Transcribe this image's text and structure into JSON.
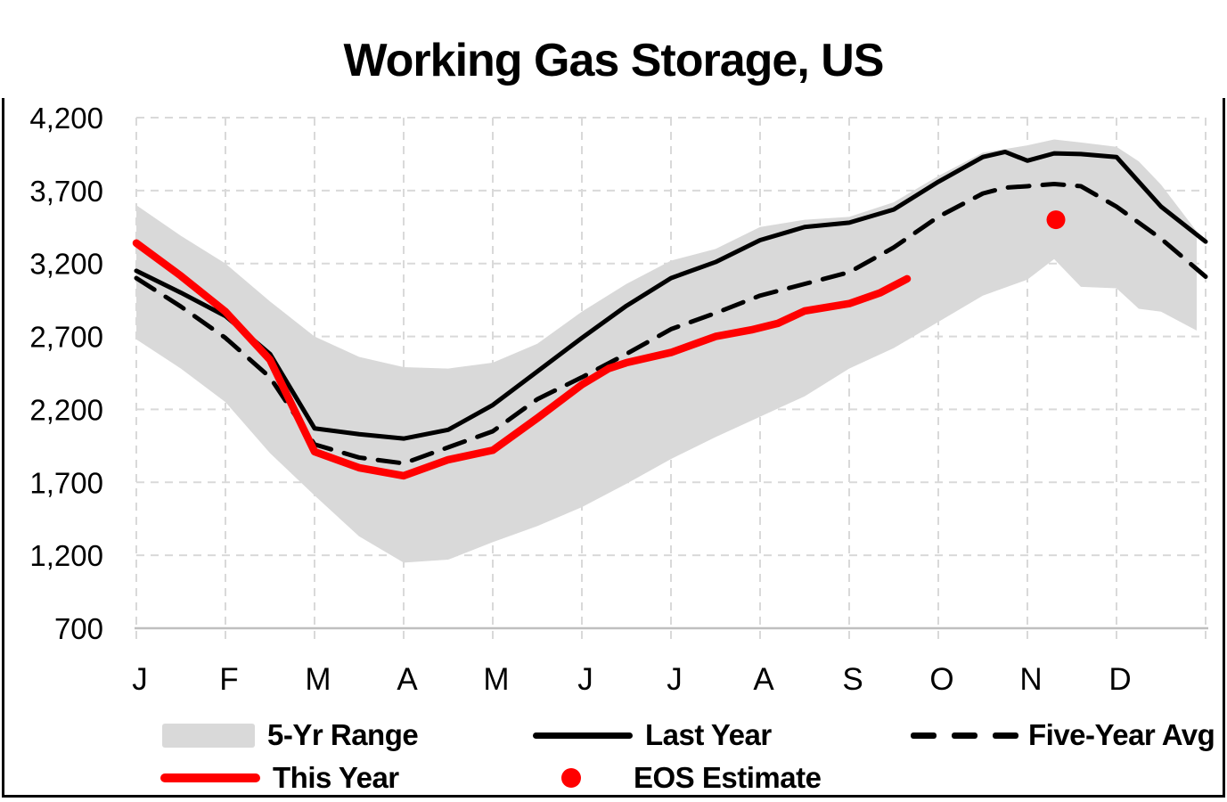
{
  "title": "Working Gas Storage, US",
  "colors": {
    "this_year": "#FF0000",
    "last_year": "#000000",
    "five_year_avg": "#000000",
    "range_band": "#D9D9D9",
    "gridline": "#D9D9D9",
    "axis_line": "#BFBFBF",
    "text": "#000000"
  },
  "legend": {
    "items": [
      {
        "label": "5-Yr Range",
        "swatch": "gray-band"
      },
      {
        "label": "Last Year",
        "swatch": "solid-black-line"
      },
      {
        "label": "Five-Year Avg",
        "swatch": "dashed-black-line"
      },
      {
        "label": "This Year",
        "swatch": "solid-red-line"
      },
      {
        "label": "EOS Estimate",
        "swatch": "red-dot"
      }
    ]
  },
  "chart_data": {
    "type": "line",
    "title": "Working Gas Storage, US",
    "xlabel": "",
    "ylabel": "",
    "x_unit": "month (0 = Jan 1, 12 = Dec 31)",
    "x_tick_labels": [
      "J",
      "F",
      "M",
      "A",
      "M",
      "J",
      "J",
      "A",
      "S",
      "O",
      "N",
      "D"
    ],
    "y_ticks": [
      700,
      1200,
      1700,
      2200,
      2700,
      3200,
      3700,
      4200
    ],
    "y_tick_labels": [
      "700",
      "1,200",
      "1,700",
      "2,200",
      "2,700",
      "3,200",
      "3,700",
      "4,200"
    ],
    "ylim": [
      700,
      4200
    ],
    "xlim": [
      0,
      12
    ],
    "grid": "dashed-both-axes",
    "legend_position": "bottom",
    "band": {
      "name": "5-Yr Range",
      "color": "#D9D9D9",
      "x": [
        0,
        0.5,
        1,
        1.5,
        2,
        2.5,
        3,
        3.5,
        4,
        4.5,
        5,
        5.5,
        6,
        6.5,
        7,
        7.5,
        8,
        8.5,
        9,
        9.5,
        10,
        10.3,
        10.6,
        11,
        11.25,
        11.5,
        11.9
      ],
      "upper": [
        3600,
        3390,
        3200,
        2940,
        2700,
        2560,
        2490,
        2480,
        2520,
        2650,
        2870,
        3060,
        3220,
        3300,
        3450,
        3500,
        3520,
        3620,
        3800,
        3960,
        4010,
        4050,
        4030,
        4000,
        3900,
        3740,
        3420
      ],
      "lower": [
        2680,
        2480,
        2250,
        1900,
        1610,
        1330,
        1150,
        1170,
        1290,
        1400,
        1530,
        1690,
        1860,
        2010,
        2150,
        2290,
        2480,
        2620,
        2800,
        2980,
        3090,
        3230,
        3040,
        3030,
        2890,
        2870,
        2740
      ]
    },
    "series": [
      {
        "name": "Last Year",
        "color": "#000000",
        "style": "solid",
        "width": 5,
        "x": [
          0,
          0.5,
          1,
          1.5,
          2,
          2.5,
          3,
          3.5,
          4,
          4.5,
          5,
          5.5,
          6,
          6.5,
          7,
          7.5,
          8,
          8.5,
          9,
          9.5,
          9.75,
          10,
          10.3,
          10.6,
          11,
          11.25,
          11.5,
          12
        ],
        "values": [
          3150,
          3000,
          2840,
          2580,
          2070,
          2030,
          2000,
          2060,
          2230,
          2460,
          2690,
          2910,
          3100,
          3210,
          3360,
          3450,
          3480,
          3570,
          3760,
          3930,
          3965,
          3905,
          3955,
          3950,
          3930,
          3760,
          3590,
          3350
        ]
      },
      {
        "name": "Five-Year Avg",
        "color": "#000000",
        "style": "dashed",
        "width": 5,
        "x": [
          0,
          0.5,
          1,
          1.5,
          2,
          2.5,
          3,
          3.5,
          4,
          4.5,
          5,
          5.5,
          6,
          6.5,
          7,
          7.5,
          8,
          8.5,
          9,
          9.5,
          9.75,
          10,
          10.3,
          10.6,
          11,
          11.25,
          11.5,
          12
        ],
        "values": [
          3100,
          2905,
          2690,
          2420,
          1960,
          1870,
          1830,
          1940,
          2050,
          2270,
          2420,
          2580,
          2750,
          2860,
          2980,
          3060,
          3140,
          3310,
          3520,
          3680,
          3720,
          3730,
          3745,
          3730,
          3590,
          3480,
          3370,
          3110
        ]
      },
      {
        "name": "This Year",
        "color": "#FF0000",
        "style": "solid",
        "width": 8.5,
        "x": [
          0,
          0.5,
          1,
          1.5,
          2,
          2.5,
          3,
          3.5,
          4,
          4.5,
          5,
          5.3,
          5.5,
          6,
          6.5,
          6.9,
          7.2,
          7.5,
          8,
          8.35,
          8.65
        ],
        "values": [
          3340,
          3115,
          2870,
          2540,
          1910,
          1800,
          1745,
          1855,
          1920,
          2140,
          2370,
          2480,
          2520,
          2590,
          2700,
          2745,
          2790,
          2875,
          2925,
          3000,
          3095
        ]
      }
    ],
    "point": {
      "name": "EOS Estimate",
      "color": "#FF0000",
      "x": 10.32,
      "value": 3500,
      "radius": 10.5
    }
  }
}
